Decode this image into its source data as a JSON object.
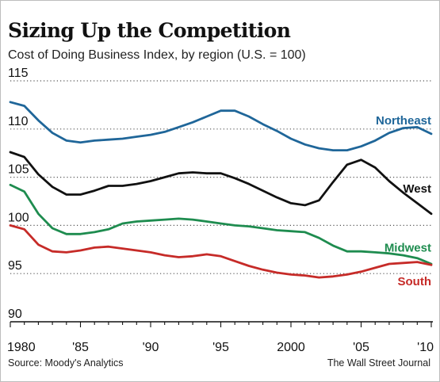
{
  "header": {
    "title": "Sizing Up the Competition",
    "subtitle": "Cost of Doing Business Index, by region (U.S. = 100)"
  },
  "footer": {
    "source": "Source: Moody's Analytics",
    "credit": "The Wall Street Journal"
  },
  "chart_data": {
    "type": "line",
    "title": "Sizing Up the Competition",
    "subtitle": "Cost of Doing Business Index, by region (U.S. = 100)",
    "xlabel": "",
    "ylabel": "",
    "x": [
      1980,
      1981,
      1982,
      1983,
      1984,
      1985,
      1986,
      1987,
      1988,
      1989,
      1990,
      1991,
      1992,
      1993,
      1994,
      1995,
      1996,
      1997,
      1998,
      1999,
      2000,
      2001,
      2002,
      2003,
      2004,
      2005,
      2006,
      2007,
      2008,
      2009,
      2010
    ],
    "xlim": [
      1980,
      2010
    ],
    "ylim": [
      90,
      115
    ],
    "y_ticks": [
      90,
      95,
      100,
      105,
      110,
      115
    ],
    "y_tick_labels": [
      "90",
      "95",
      "100",
      "105",
      "110",
      "115"
    ],
    "x_ticks": [
      1980,
      1985,
      1990,
      1995,
      2000,
      2005,
      2010
    ],
    "x_tick_labels": [
      "1980",
      "'85",
      "'90",
      "'95",
      "2000",
      "'05",
      "'10"
    ],
    "grid": "horizontal dotted",
    "series": [
      {
        "name": "Northeast",
        "color": "#1f6699",
        "values": [
          112.8,
          112.4,
          110.9,
          109.6,
          108.8,
          108.6,
          108.8,
          108.9,
          109.0,
          109.2,
          109.4,
          109.7,
          110.2,
          110.7,
          111.3,
          111.9,
          111.9,
          111.3,
          110.5,
          109.8,
          109.0,
          108.4,
          108.0,
          107.8,
          107.8,
          108.2,
          108.8,
          109.6,
          110.1,
          110.2,
          109.5
        ]
      },
      {
        "name": "West",
        "color": "#111111",
        "values": [
          107.6,
          107.1,
          105.3,
          104.0,
          103.2,
          103.2,
          103.6,
          104.1,
          104.1,
          104.3,
          104.6,
          105.0,
          105.4,
          105.5,
          105.4,
          105.4,
          104.9,
          104.3,
          103.6,
          102.9,
          102.3,
          102.1,
          102.6,
          104.5,
          106.3,
          106.8,
          106.0,
          104.6,
          103.4,
          102.3,
          101.2
        ]
      },
      {
        "name": "Midwest",
        "color": "#1e8c4f",
        "values": [
          104.2,
          103.5,
          101.2,
          99.7,
          99.1,
          99.1,
          99.3,
          99.6,
          100.2,
          100.4,
          100.5,
          100.6,
          100.7,
          100.6,
          100.4,
          100.2,
          100.0,
          99.9,
          99.7,
          99.5,
          99.4,
          99.3,
          98.7,
          97.9,
          97.3,
          97.3,
          97.2,
          97.1,
          96.9,
          96.6,
          96.0
        ]
      },
      {
        "name": "South",
        "color": "#c62b28",
        "values": [
          100.0,
          99.6,
          98.0,
          97.3,
          97.2,
          97.4,
          97.7,
          97.8,
          97.6,
          97.4,
          97.2,
          96.9,
          96.7,
          96.8,
          97.0,
          96.8,
          96.3,
          95.8,
          95.4,
          95.1,
          94.9,
          94.8,
          94.6,
          94.7,
          94.9,
          95.2,
          95.6,
          96.0,
          96.1,
          96.2,
          95.9
        ]
      }
    ],
    "series_labels": [
      {
        "text": "Northeast",
        "color": "#1f6699",
        "anchor_value": 110.9
      },
      {
        "text": "West",
        "color": "#111111",
        "anchor_value": 103.8
      },
      {
        "text": "Midwest",
        "color": "#1e8c4f",
        "anchor_value": 97.7
      },
      {
        "text": "South",
        "color": "#c62b28",
        "anchor_value": 94.2
      }
    ]
  }
}
